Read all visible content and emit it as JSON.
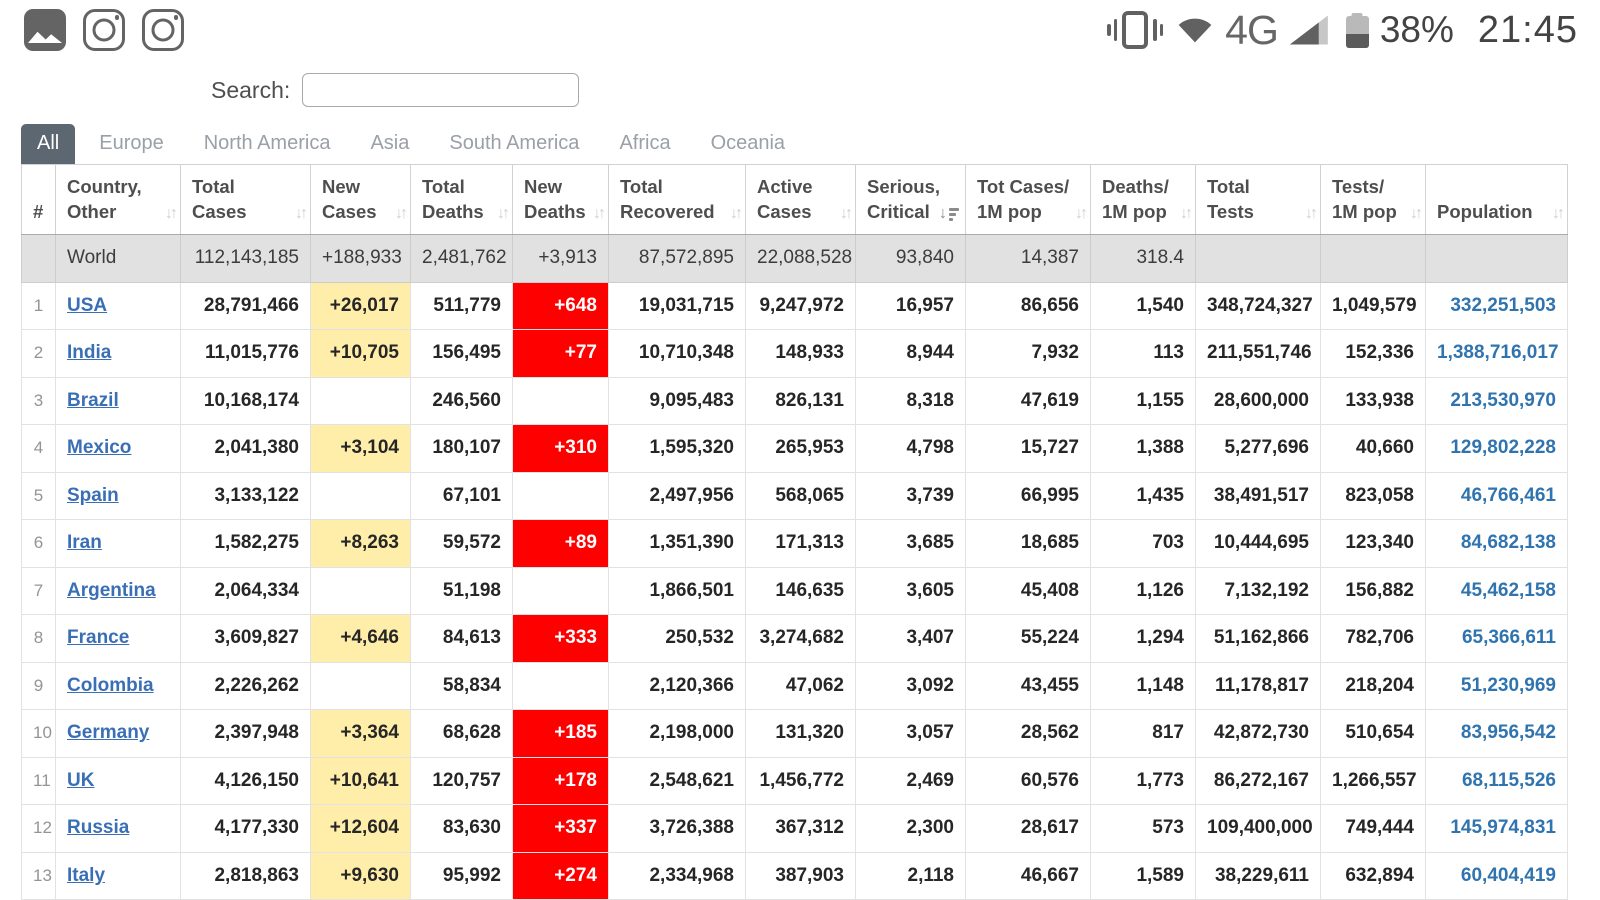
{
  "status_bar": {
    "left_icons": [
      "gallery-icon",
      "instagram-icon",
      "instagram-icon"
    ],
    "network_label": "4G",
    "battery_percent": "38%",
    "time": "21:45"
  },
  "search": {
    "label": "Search:",
    "value": "",
    "placeholder": ""
  },
  "tabs": [
    {
      "label": "All",
      "active": true
    },
    {
      "label": "Europe",
      "active": false
    },
    {
      "label": "North America",
      "active": false
    },
    {
      "label": "Asia",
      "active": false
    },
    {
      "label": "South America",
      "active": false
    },
    {
      "label": "Africa",
      "active": false
    },
    {
      "label": "Oceania",
      "active": false
    }
  ],
  "table": {
    "columns": [
      {
        "key": "idx",
        "line1": "#",
        "line2": "",
        "sort": "none"
      },
      {
        "key": "country",
        "line1": "Country,",
        "line2": "Other",
        "sort": "default"
      },
      {
        "key": "total_cases",
        "line1": "Total",
        "line2": "Cases",
        "sort": "default"
      },
      {
        "key": "new_cases",
        "line1": "New",
        "line2": "Cases",
        "sort": "default"
      },
      {
        "key": "total_deaths",
        "line1": "Total",
        "line2": "Deaths",
        "sort": "default"
      },
      {
        "key": "new_deaths",
        "line1": "New",
        "line2": "Deaths",
        "sort": "default"
      },
      {
        "key": "total_recovered",
        "line1": "Total",
        "line2": "Recovered",
        "sort": "default"
      },
      {
        "key": "active_cases",
        "line1": "Active",
        "line2": "Cases",
        "sort": "default"
      },
      {
        "key": "serious_critical",
        "line1": "Serious,",
        "line2": "Critical",
        "sort": "active-desc"
      },
      {
        "key": "tot_cases_1m",
        "line1": "Tot Cases/",
        "line2": "1M pop",
        "sort": "default"
      },
      {
        "key": "deaths_1m",
        "line1": "Deaths/",
        "line2": "1M pop",
        "sort": "default"
      },
      {
        "key": "total_tests",
        "line1": "Total",
        "line2": "Tests",
        "sort": "default"
      },
      {
        "key": "tests_1m",
        "line1": "Tests/",
        "line2": "1M pop",
        "sort": "default"
      },
      {
        "key": "population",
        "line1": "",
        "line2": "Population",
        "sort": "default"
      }
    ],
    "world_row": {
      "idx": "",
      "country": "World",
      "total_cases": "112,143,185",
      "new_cases": "+188,933",
      "total_deaths": "2,481,762",
      "new_deaths": "+3,913",
      "total_recovered": "87,572,895",
      "active_cases": "22,088,528",
      "serious_critical": "93,840",
      "tot_cases_1m": "14,387",
      "deaths_1m": "318.4",
      "total_tests": "",
      "tests_1m": "",
      "population": ""
    },
    "rows": [
      {
        "idx": "1",
        "country": "USA",
        "total_cases": "28,791,466",
        "new_cases": "+26,017",
        "total_deaths": "511,779",
        "new_deaths": "+648",
        "total_recovered": "19,031,715",
        "active_cases": "9,247,972",
        "serious_critical": "16,957",
        "tot_cases_1m": "86,656",
        "deaths_1m": "1,540",
        "total_tests": "348,724,327",
        "tests_1m": "1,049,579",
        "population": "332,251,503"
      },
      {
        "idx": "2",
        "country": "India",
        "total_cases": "11,015,776",
        "new_cases": "+10,705",
        "total_deaths": "156,495",
        "new_deaths": "+77",
        "total_recovered": "10,710,348",
        "active_cases": "148,933",
        "serious_critical": "8,944",
        "tot_cases_1m": "7,932",
        "deaths_1m": "113",
        "total_tests": "211,551,746",
        "tests_1m": "152,336",
        "population": "1,388,716,017"
      },
      {
        "idx": "3",
        "country": "Brazil",
        "total_cases": "10,168,174",
        "new_cases": "",
        "total_deaths": "246,560",
        "new_deaths": "",
        "total_recovered": "9,095,483",
        "active_cases": "826,131",
        "serious_critical": "8,318",
        "tot_cases_1m": "47,619",
        "deaths_1m": "1,155",
        "total_tests": "28,600,000",
        "tests_1m": "133,938",
        "population": "213,530,970"
      },
      {
        "idx": "4",
        "country": "Mexico",
        "total_cases": "2,041,380",
        "new_cases": "+3,104",
        "total_deaths": "180,107",
        "new_deaths": "+310",
        "total_recovered": "1,595,320",
        "active_cases": "265,953",
        "serious_critical": "4,798",
        "tot_cases_1m": "15,727",
        "deaths_1m": "1,388",
        "total_tests": "5,277,696",
        "tests_1m": "40,660",
        "population": "129,802,228"
      },
      {
        "idx": "5",
        "country": "Spain",
        "total_cases": "3,133,122",
        "new_cases": "",
        "total_deaths": "67,101",
        "new_deaths": "",
        "total_recovered": "2,497,956",
        "active_cases": "568,065",
        "serious_critical": "3,739",
        "tot_cases_1m": "66,995",
        "deaths_1m": "1,435",
        "total_tests": "38,491,517",
        "tests_1m": "823,058",
        "population": "46,766,461"
      },
      {
        "idx": "6",
        "country": "Iran",
        "total_cases": "1,582,275",
        "new_cases": "+8,263",
        "total_deaths": "59,572",
        "new_deaths": "+89",
        "total_recovered": "1,351,390",
        "active_cases": "171,313",
        "serious_critical": "3,685",
        "tot_cases_1m": "18,685",
        "deaths_1m": "703",
        "total_tests": "10,444,695",
        "tests_1m": "123,340",
        "population": "84,682,138"
      },
      {
        "idx": "7",
        "country": "Argentina",
        "total_cases": "2,064,334",
        "new_cases": "",
        "total_deaths": "51,198",
        "new_deaths": "",
        "total_recovered": "1,866,501",
        "active_cases": "146,635",
        "serious_critical": "3,605",
        "tot_cases_1m": "45,408",
        "deaths_1m": "1,126",
        "total_tests": "7,132,192",
        "tests_1m": "156,882",
        "population": "45,462,158"
      },
      {
        "idx": "8",
        "country": "France",
        "total_cases": "3,609,827",
        "new_cases": "+4,646",
        "total_deaths": "84,613",
        "new_deaths": "+333",
        "total_recovered": "250,532",
        "active_cases": "3,274,682",
        "serious_critical": "3,407",
        "tot_cases_1m": "55,224",
        "deaths_1m": "1,294",
        "total_tests": "51,162,866",
        "tests_1m": "782,706",
        "population": "65,366,611"
      },
      {
        "idx": "9",
        "country": "Colombia",
        "total_cases": "2,226,262",
        "new_cases": "",
        "total_deaths": "58,834",
        "new_deaths": "",
        "total_recovered": "2,120,366",
        "active_cases": "47,062",
        "serious_critical": "3,092",
        "tot_cases_1m": "43,455",
        "deaths_1m": "1,148",
        "total_tests": "11,178,817",
        "tests_1m": "218,204",
        "population": "51,230,969"
      },
      {
        "idx": "10",
        "country": "Germany",
        "total_cases": "2,397,948",
        "new_cases": "+3,364",
        "total_deaths": "68,628",
        "new_deaths": "+185",
        "total_recovered": "2,198,000",
        "active_cases": "131,320",
        "serious_critical": "3,057",
        "tot_cases_1m": "28,562",
        "deaths_1m": "817",
        "total_tests": "42,872,730",
        "tests_1m": "510,654",
        "population": "83,956,542"
      },
      {
        "idx": "11",
        "country": "UK",
        "total_cases": "4,126,150",
        "new_cases": "+10,641",
        "total_deaths": "120,757",
        "new_deaths": "+178",
        "total_recovered": "2,548,621",
        "active_cases": "1,456,772",
        "serious_critical": "2,469",
        "tot_cases_1m": "60,576",
        "deaths_1m": "1,773",
        "total_tests": "86,272,167",
        "tests_1m": "1,266,557",
        "population": "68,115,526"
      },
      {
        "idx": "12",
        "country": "Russia",
        "total_cases": "4,177,330",
        "new_cases": "+12,604",
        "total_deaths": "83,630",
        "new_deaths": "+337",
        "total_recovered": "3,726,388",
        "active_cases": "367,312",
        "serious_critical": "2,300",
        "tot_cases_1m": "28,617",
        "deaths_1m": "573",
        "total_tests": "109,400,000",
        "tests_1m": "749,444",
        "population": "145,974,831"
      },
      {
        "idx": "13",
        "country": "Italy",
        "total_cases": "2,818,863",
        "new_cases": "+9,630",
        "total_deaths": "95,992",
        "new_deaths": "+274",
        "total_recovered": "2,334,968",
        "active_cases": "387,903",
        "serious_critical": "2,118",
        "tot_cases_1m": "46,667",
        "deaths_1m": "1,589",
        "total_tests": "38,229,611",
        "tests_1m": "632,894",
        "population": "60,404,419"
      }
    ]
  },
  "colors": {
    "new_cases_bg": "#FFEEAA",
    "new_deaths_bg": "#FF0000",
    "world_row_bg": "#E1E1E1",
    "active_tab_bg": "#5D6771",
    "link_blue": "#3A6FB5"
  }
}
